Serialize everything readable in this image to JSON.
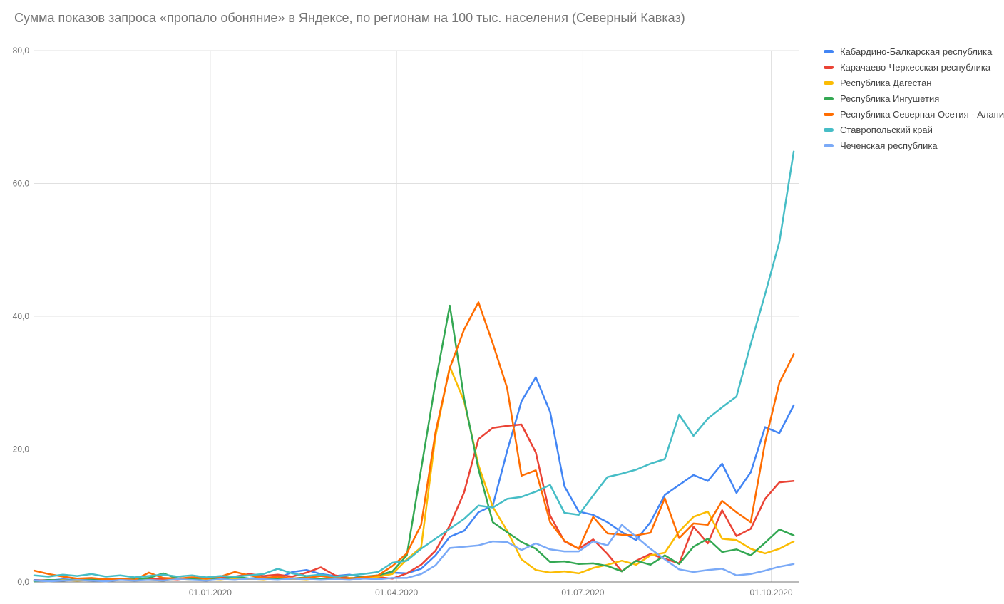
{
  "title": "Сумма показов запроса «пропало обоняние» в Яндексе, по регионам на 100 тыс. населения (Северный Кавказ)",
  "chart_data": {
    "type": "line",
    "title": "Сумма показов запроса «пропало обоняние» в Яндексе, по регионам на 100 тыс. населения (Северный Кавказ)",
    "xlabel": "",
    "ylabel": "",
    "ylim": [
      0,
      80
    ],
    "grid": true,
    "legend_position": "right",
    "y_ticks": [
      {
        "value": 0,
        "label": "0,0"
      },
      {
        "value": 20,
        "label": "20,0"
      },
      {
        "value": 40,
        "label": "40,0"
      },
      {
        "value": 60,
        "label": "60,0"
      },
      {
        "value": 80,
        "label": "80,0"
      }
    ],
    "x_tick_labels": [
      "01.01.2020",
      "01.04.2020",
      "01.07.2020",
      "01.10.2020"
    ],
    "x_dates": [
      "07.10.2019",
      "14.10.2019",
      "21.10.2019",
      "28.10.2019",
      "04.11.2019",
      "11.11.2019",
      "18.11.2019",
      "25.11.2019",
      "02.12.2019",
      "09.12.2019",
      "16.12.2019",
      "23.12.2019",
      "30.12.2019",
      "06.01.2020",
      "13.01.2020",
      "20.01.2020",
      "27.01.2020",
      "03.02.2020",
      "10.02.2020",
      "17.02.2020",
      "24.02.2020",
      "02.03.2020",
      "09.03.2020",
      "16.03.2020",
      "23.03.2020",
      "30.03.2020",
      "06.04.2020",
      "13.04.2020",
      "20.04.2020",
      "27.04.2020",
      "04.05.2020",
      "11.05.2020",
      "18.05.2020",
      "25.05.2020",
      "01.06.2020",
      "08.06.2020",
      "15.06.2020",
      "22.06.2020",
      "29.06.2020",
      "06.07.2020",
      "13.07.2020",
      "20.07.2020",
      "27.07.2020",
      "03.08.2020",
      "10.08.2020",
      "17.08.2020",
      "24.08.2020",
      "31.08.2020",
      "07.09.2020",
      "14.09.2020",
      "21.09.2020",
      "28.09.2020",
      "05.10.2020",
      "12.10.2020"
    ],
    "series": [
      {
        "name": "Кабардино-Балкарская республика",
        "color": "#4285F4",
        "values": [
          0.3,
          0.2,
          0.4,
          0.3,
          0.5,
          0.4,
          0.3,
          0.5,
          0.4,
          0.6,
          0.4,
          0.5,
          0.6,
          0.8,
          0.6,
          0.5,
          0.7,
          0.5,
          1.5,
          1.8,
          1.2,
          0.9,
          1.1,
          0.7,
          1.0,
          1.4,
          1.3,
          2.0,
          4.0,
          6.8,
          7.7,
          10.5,
          11.5,
          19.7,
          27.2,
          30.8,
          25.6,
          14.4,
          10.6,
          10.1,
          9.0,
          7.5,
          6.3,
          9.0,
          13.1,
          14.6,
          16.1,
          15.2,
          17.8,
          13.4,
          16.5,
          23.3,
          22.4,
          26.6
        ]
      },
      {
        "name": "Карачаево-Черкесская республика",
        "color": "#EA4335",
        "values": [
          0.2,
          0.3,
          0.2,
          0.4,
          0.3,
          0.2,
          0.4,
          0.3,
          0.5,
          0.4,
          0.3,
          0.5,
          0.4,
          0.6,
          0.8,
          1.2,
          0.9,
          1.1,
          0.8,
          1.4,
          2.2,
          1.0,
          0.6,
          0.5,
          0.7,
          0.5,
          1.3,
          2.6,
          4.7,
          8.5,
          13.5,
          21.5,
          23.2,
          23.5,
          23.7,
          19.5,
          10.0,
          6.1,
          5.0,
          6.4,
          4.2,
          1.6,
          3.2,
          4.2,
          3.5,
          2.8,
          8.3,
          5.8,
          10.8,
          6.9,
          8.0,
          12.5,
          15.0,
          15.2
        ]
      },
      {
        "name": "Республика Дагестан",
        "color": "#FBBC04",
        "values": [
          0.2,
          0.1,
          0.3,
          0.2,
          0.3,
          0.2,
          0.3,
          0.4,
          0.3,
          0.2,
          0.4,
          0.3,
          0.4,
          0.3,
          0.5,
          0.4,
          0.3,
          0.5,
          0.4,
          0.3,
          0.5,
          0.4,
          0.6,
          0.5,
          0.8,
          1.2,
          3.4,
          5.2,
          21.9,
          32.4,
          27.2,
          17.6,
          11.3,
          7.7,
          3.4,
          1.8,
          1.4,
          1.6,
          1.3,
          2.1,
          2.6,
          3.2,
          2.6,
          4.0,
          4.4,
          7.6,
          9.8,
          10.6,
          6.5,
          6.3,
          5.0,
          4.3,
          5.0,
          6.1
        ]
      },
      {
        "name": "Республика Ингушетия",
        "color": "#34A853",
        "values": [
          0.1,
          0.3,
          0.2,
          0.4,
          0.3,
          0.5,
          0.3,
          0.4,
          0.6,
          1.3,
          0.5,
          0.4,
          0.6,
          0.4,
          0.8,
          0.5,
          0.6,
          0.4,
          0.5,
          0.7,
          0.4,
          0.6,
          0.5,
          0.8,
          1.0,
          1.6,
          4.0,
          17.0,
          30.0,
          41.6,
          27.6,
          17.0,
          9.0,
          7.5,
          6.0,
          5.0,
          3.0,
          3.1,
          2.7,
          2.8,
          2.4,
          1.6,
          3.2,
          2.6,
          4.0,
          2.7,
          5.3,
          6.5,
          4.5,
          4.9,
          4.0,
          5.9,
          7.9,
          7.0
        ]
      },
      {
        "name": "Республика Северная Осетия - Алания",
        "color": "#FF6D01",
        "values": [
          1.7,
          1.2,
          0.8,
          0.5,
          0.6,
          0.4,
          0.5,
          0.3,
          1.4,
          0.6,
          0.5,
          0.7,
          0.5,
          0.8,
          1.5,
          1.0,
          0.6,
          0.8,
          0.5,
          0.6,
          0.9,
          0.6,
          0.5,
          0.7,
          1.0,
          2.4,
          4.3,
          8.6,
          22.5,
          32.2,
          38.0,
          42.1,
          35.9,
          29.2,
          16.0,
          16.8,
          9.0,
          6.2,
          5.0,
          9.8,
          7.3,
          7.1,
          7.0,
          7.4,
          12.6,
          6.6,
          8.8,
          8.6,
          12.2,
          10.5,
          9.0,
          21.0,
          30.0,
          34.3
        ]
      },
      {
        "name": "Ставропольский край",
        "color": "#46BDC6",
        "values": [
          1.0,
          0.8,
          1.1,
          0.9,
          1.2,
          0.8,
          1.0,
          0.7,
          0.9,
          1.1,
          0.8,
          1.0,
          0.7,
          0.9,
          0.8,
          1.0,
          1.2,
          2.0,
          1.3,
          0.9,
          1.1,
          0.8,
          1.0,
          1.2,
          1.5,
          2.9,
          3.2,
          5.0,
          6.5,
          8.0,
          9.5,
          11.5,
          11.2,
          12.5,
          12.8,
          13.6,
          14.6,
          10.4,
          10.1,
          13.0,
          15.8,
          16.3,
          16.9,
          17.8,
          18.5,
          25.2,
          22.0,
          24.6,
          26.3,
          27.9,
          35.8,
          43.3,
          51.2,
          64.8
        ]
      },
      {
        "name": "Чеченская республика",
        "color": "#7BAAF7",
        "values": [
          0.2,
          0.1,
          0.2,
          0.3,
          0.2,
          0.1,
          0.3,
          0.2,
          0.3,
          0.2,
          0.4,
          0.3,
          0.2,
          0.4,
          0.3,
          0.5,
          0.4,
          0.3,
          0.5,
          0.4,
          0.3,
          0.4,
          0.3,
          0.5,
          0.4,
          0.6,
          0.6,
          1.2,
          2.5,
          5.1,
          5.3,
          5.5,
          6.1,
          6.0,
          4.8,
          5.8,
          4.9,
          4.6,
          4.6,
          6.1,
          5.5,
          8.6,
          6.8,
          5.0,
          3.4,
          1.9,
          1.5,
          1.8,
          2.0,
          1.0,
          1.2,
          1.7,
          2.3,
          2.7
        ]
      }
    ],
    "style": {
      "gridline_color": "#e0e0e0",
      "axis_line_color": "#757575",
      "tick_label_color": "#757575",
      "title_color": "#757575",
      "legend_text_color": "#424242",
      "background": "#ffffff"
    }
  }
}
